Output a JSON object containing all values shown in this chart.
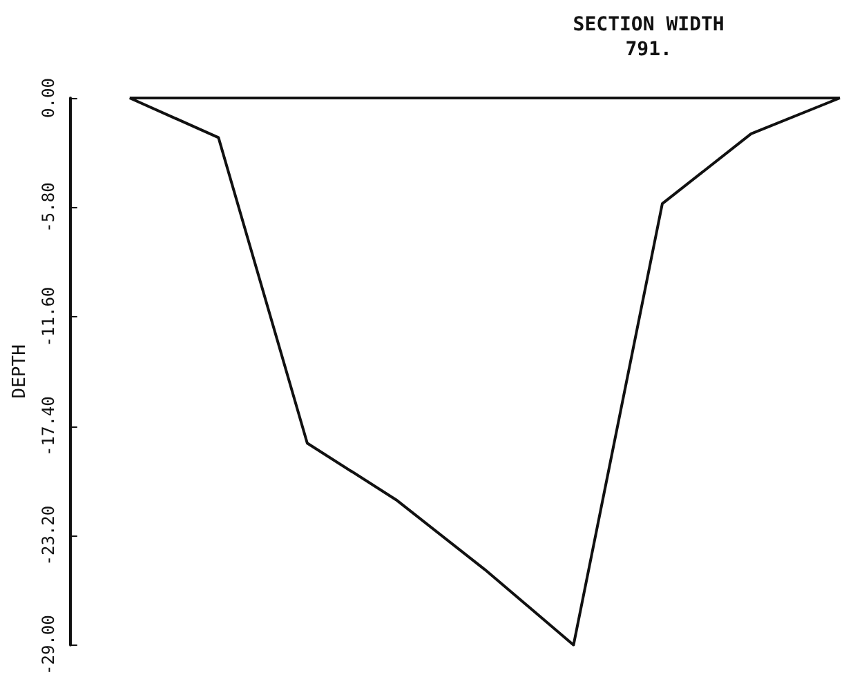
{
  "chart_data": {
    "type": "line",
    "title": "SECTION WIDTH",
    "subtitle": "791.",
    "ylabel": "DEPTH",
    "categories": [
      null,
      null,
      null,
      null,
      null,
      null,
      null,
      null,
      null
    ],
    "series": [
      {
        "color": "#111111",
        "values": [
          0,
          -2.1,
          -18.3,
          -21.3,
          -25.0,
          -29.0,
          -5.6,
          -1.9,
          0
        ]
      }
    ],
    "ref_lines": [
      {
        "axis": "y",
        "value": 0,
        "color": "#111111",
        "line_style": "solid"
      }
    ],
    "ylim": [
      -29,
      0
    ],
    "yticks": [
      {
        "value": 0,
        "label": "0.00"
      },
      {
        "value": -5.8,
        "label": "-5.80"
      },
      {
        "value": -11.6,
        "label": "-11.60"
      },
      {
        "value": -17.4,
        "label": "-17.40"
      },
      {
        "value": -23.2,
        "label": "-23.20"
      },
      {
        "value": -29,
        "label": "-29.00"
      }
    ],
    "tick_labels": "y",
    "grid": false,
    "marker": "none",
    "line_style": "solid"
  }
}
